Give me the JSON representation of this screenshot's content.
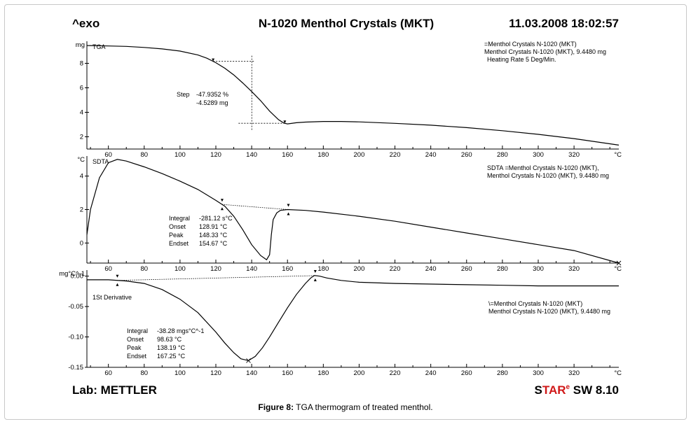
{
  "header": {
    "left": "^exo",
    "title": "N-1020 Menthol Crystals (MKT)",
    "timestamp": "11.03.2008 18:02:57"
  },
  "footer": {
    "lab": "Lab: METTLER",
    "software_star_prefix": "S",
    "software_star_accent": "TAR",
    "software_star_e": "e",
    "software_rest": " SW 8.10"
  },
  "caption": {
    "label": "Figure 8:",
    "text": " TGA thermogram of treated menthol."
  },
  "chart_data": [
    {
      "type": "line",
      "panel": "TGA",
      "label": "TGA",
      "yunit": "mg",
      "xunit": "°C",
      "xlim": [
        48,
        345
      ],
      "ylim": [
        1.0,
        9.8
      ],
      "xticks": [
        60,
        80,
        100,
        120,
        140,
        160,
        180,
        200,
        220,
        240,
        260,
        280,
        300,
        320
      ],
      "yticks": [
        2,
        4,
        6,
        8
      ],
      "x": [
        48,
        60,
        70,
        80,
        90,
        100,
        110,
        115,
        120,
        125,
        130,
        135,
        140,
        145,
        150,
        155,
        158,
        160,
        165,
        170,
        180,
        190,
        200,
        220,
        240,
        260,
        280,
        300,
        320,
        345
      ],
      "y": [
        9.45,
        9.42,
        9.38,
        9.3,
        9.18,
        9.0,
        8.68,
        8.42,
        8.05,
        7.6,
        7.05,
        6.4,
        5.7,
        4.95,
        4.1,
        3.4,
        3.12,
        3.05,
        3.15,
        3.2,
        3.25,
        3.25,
        3.22,
        3.1,
        2.95,
        2.75,
        2.5,
        2.2,
        1.85,
        1.32
      ],
      "step_markers": [
        118.5,
        158.5
      ],
      "legend": [
        "=Menthol Crystals N-1020 (MKT)",
        "Menthol Crystals N-1020 (MKT), 9.4480 mg",
        "Heating Rate 5 Deg/Min."
      ],
      "annotation": {
        "step_label": "Step",
        "step_value": "-47.9352 %",
        "step_mass": "-4.5289 mg"
      }
    },
    {
      "type": "line",
      "panel": "SDTA",
      "label": "SDTA",
      "yunit": "°C",
      "xunit": "°C",
      "xlim": [
        48,
        345
      ],
      "ylim": [
        -1.2,
        5.2
      ],
      "xticks": [
        60,
        80,
        100,
        120,
        140,
        160,
        180,
        200,
        220,
        240,
        260,
        280,
        300,
        320
      ],
      "yticks": [
        0,
        2,
        4
      ],
      "x": [
        48,
        50,
        55,
        60,
        65,
        70,
        80,
        90,
        100,
        110,
        120,
        125,
        130,
        135,
        140,
        145,
        148.33,
        150,
        151,
        152,
        154,
        156,
        160,
        170,
        180,
        200,
        220,
        240,
        260,
        280,
        300,
        320,
        345
      ],
      "y": [
        0.5,
        2.0,
        3.9,
        4.8,
        5.0,
        4.9,
        4.55,
        4.15,
        3.7,
        3.2,
        2.55,
        2.2,
        1.6,
        0.8,
        -0.1,
        -0.75,
        -1.0,
        -0.7,
        0.5,
        1.4,
        1.8,
        1.95,
        2.0,
        1.95,
        1.85,
        1.6,
        1.3,
        0.95,
        0.6,
        0.25,
        -0.1,
        -0.45,
        -1.2
      ],
      "baseline_markers": [
        123.5,
        160.5
      ],
      "legend": [
        "SDTA =Menthol Crystals N-1020 (MKT),",
        "Menthol Crystals N-1020 (MKT), 9.4480 mg"
      ],
      "annotation": {
        "labels": [
          "Integral",
          "Onset",
          "Peak",
          "Endset"
        ],
        "values": [
          "-281.12 s°C",
          "128.91 °C",
          "148.33 °C",
          "154.67 °C"
        ]
      }
    },
    {
      "type": "line",
      "panel": "1St Derivative",
      "label": "1St Derivative",
      "yunit": "mg°C^-1",
      "xunit": "°C",
      "xlim": [
        48,
        345
      ],
      "ylim": [
        -0.15,
        0.01
      ],
      "xticks": [
        60,
        80,
        100,
        120,
        140,
        160,
        180,
        200,
        220,
        240,
        260,
        280,
        300,
        320
      ],
      "yticks": [
        0.0,
        -0.05,
        -0.1,
        -0.15
      ],
      "ytick_labels": [
        "0.00",
        "-0.05",
        "-0.10",
        "-0.15"
      ],
      "x": [
        48,
        60,
        70,
        80,
        90,
        100,
        110,
        120,
        125,
        130,
        134,
        138.19,
        142,
        146,
        150,
        155,
        160,
        165,
        170,
        173,
        175,
        178,
        182,
        190,
        200,
        220,
        240,
        260,
        280,
        300,
        320,
        345
      ],
      "y": [
        -0.006,
        -0.006,
        -0.008,
        -0.012,
        -0.022,
        -0.038,
        -0.06,
        -0.092,
        -0.11,
        -0.126,
        -0.136,
        -0.139,
        -0.132,
        -0.118,
        -0.1,
        -0.076,
        -0.052,
        -0.03,
        -0.012,
        -0.003,
        0.001,
        0.0,
        -0.003,
        -0.007,
        -0.01,
        -0.012,
        -0.013,
        -0.014,
        -0.015,
        -0.016,
        -0.016,
        -0.016
      ],
      "baseline_markers": [
        65,
        175.5
      ],
      "legend": [
        "\\=Menthol Crystals N-1020 (MKT)",
        "Menthol Crystals N-1020 (MKT), 9.4480 mg"
      ],
      "annotation": {
        "labels": [
          "Integral",
          "Onset",
          "Peak",
          "Endset"
        ],
        "values": [
          "-38.28 mgs°C^-1",
          "98.63 °C",
          "138.19 °C",
          "167.25 °C"
        ]
      }
    }
  ]
}
